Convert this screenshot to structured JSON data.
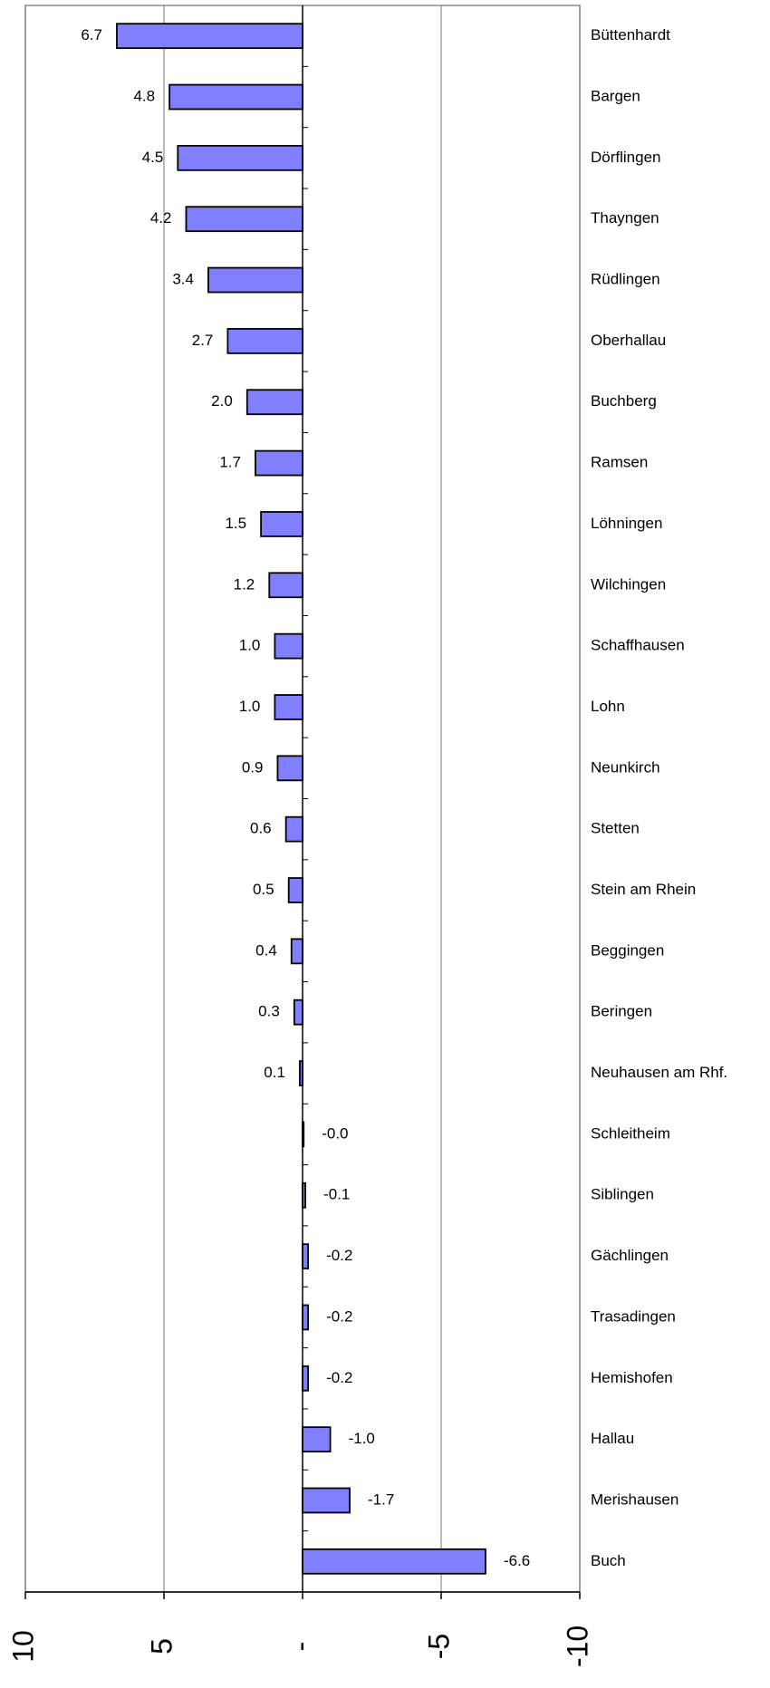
{
  "chart_data": {
    "type": "bar",
    "orientation": "horizontal",
    "color": "#8080ff",
    "categories": [
      "Büttenhardt",
      "Bargen",
      "Dörflingen",
      "Thayngen",
      "Rüdlingen",
      "Oberhallau",
      "Buchberg",
      "Ramsen",
      "Löhningen",
      "Wilchingen",
      "Schaffhausen",
      "Lohn",
      "Neunkirch",
      "Stetten",
      "Stein am Rhein",
      "Beggingen",
      "Beringen",
      "Neuhausen am Rhf.",
      "Schleitheim",
      "Siblingen",
      "Gächlingen",
      "Trasadingen",
      "Hemishofen",
      "Hallau",
      "Merishausen",
      "Buch"
    ],
    "values": [
      6.7,
      4.8,
      4.5,
      4.2,
      3.4,
      2.7,
      2.0,
      1.7,
      1.5,
      1.2,
      1.0,
      1.0,
      0.9,
      0.6,
      0.5,
      0.4,
      0.3,
      0.1,
      -0.04,
      -0.1,
      -0.2,
      -0.2,
      -0.2,
      -1.0,
      -1.7,
      -6.6
    ],
    "value_labels": [
      "6.7",
      "4.8",
      "4.5",
      "4.2",
      "3.4",
      "2.7",
      "2.0",
      "1.7",
      "1.5",
      "1.2",
      "1.0",
      "1.0",
      "0.9",
      "0.6",
      "0.5",
      "0.4",
      "0.3",
      "0.1",
      "-0.0",
      "-0.1",
      "-0.2",
      "-0.2",
      "-0.2",
      "-1.0",
      "-1.7",
      "-6.6"
    ],
    "xlim": [
      10,
      -10
    ],
    "xticks": [
      10,
      5,
      {
        "value": 0,
        "label": "-"
      },
      -5,
      -10
    ],
    "grid": true
  }
}
